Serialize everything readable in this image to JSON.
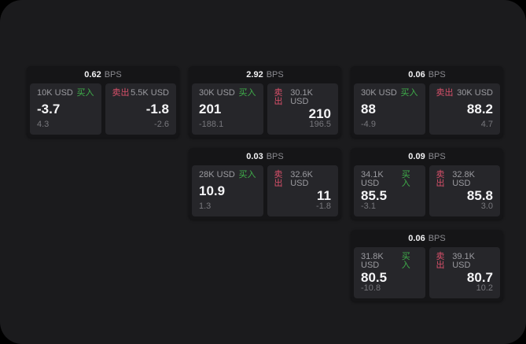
{
  "labels": {
    "bps": "BPS",
    "buy": "买入",
    "sell": "卖出"
  },
  "colors": {
    "page_bg": "#1b1b1d",
    "card_bg": "#151517",
    "panel_bg": "#26262a",
    "buy_green": "#3fae4a",
    "sell_red": "#d8506a",
    "value_white": "#f5f5f7",
    "label_gray": "#9b9ba0",
    "dim_gray": "#77777c"
  },
  "cards": [
    {
      "bps": "0.62",
      "buy": {
        "amount": "10K USD",
        "price": "-3.7",
        "delta": "4.3"
      },
      "sell": {
        "amount": "5.5K USD",
        "price": "-1.8",
        "delta": "-2.6"
      }
    },
    {
      "bps": "2.92",
      "buy": {
        "amount": "30K USD",
        "price": "201",
        "delta": "-188.1"
      },
      "sell": {
        "amount": "30.1K USD",
        "price": "210",
        "delta": "196.5"
      }
    },
    {
      "bps": "0.06",
      "buy": {
        "amount": "30K USD",
        "price": "88",
        "delta": "-4.9"
      },
      "sell": {
        "amount": "30K USD",
        "price": "88.2",
        "delta": "4.7"
      }
    },
    {
      "bps": "0.03",
      "buy": {
        "amount": "28K USD",
        "price": "10.9",
        "delta": "1.3"
      },
      "sell": {
        "amount": "32.6K USD",
        "price": "11",
        "delta": "-1.8"
      }
    },
    {
      "bps": "0.09",
      "buy": {
        "amount": "34.1K USD",
        "price": "85.5",
        "delta": "-3.1"
      },
      "sell": {
        "amount": "32.8K USD",
        "price": "85.8",
        "delta": "3.0"
      }
    },
    {
      "bps": "0.06",
      "buy": {
        "amount": "31.8K USD",
        "price": "80.5",
        "delta": "-10.8"
      },
      "sell": {
        "amount": "39.1K USD",
        "price": "80.7",
        "delta": "10.2"
      }
    }
  ]
}
